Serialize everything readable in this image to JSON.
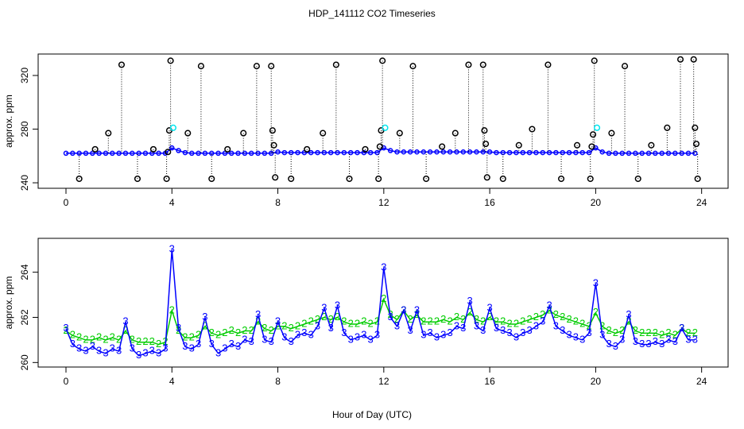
{
  "chart_data": [
    {
      "type": "scatter",
      "title": "HDP_141112  CO2 Timeseries",
      "ylabel": "approx. ppm",
      "xlim": [
        -1.05,
        25.0
      ],
      "ylim": [
        235.9,
        336
      ],
      "xticks": [
        0,
        4,
        8,
        12,
        16,
        20,
        24
      ],
      "yticks": [
        240,
        280,
        320
      ],
      "x": [
        0,
        0.25,
        0.5,
        0.75,
        1,
        1.25,
        1.5,
        1.75,
        2,
        2.25,
        2.5,
        2.75,
        3,
        3.25,
        3.5,
        3.75,
        4,
        4.25,
        4.5,
        4.75,
        5,
        5.25,
        5.5,
        5.75,
        6,
        6.25,
        6.5,
        6.75,
        7,
        7.25,
        7.5,
        7.75,
        8,
        8.25,
        8.5,
        8.75,
        9,
        9.25,
        9.5,
        9.75,
        10,
        10.25,
        10.5,
        10.75,
        11,
        11.25,
        11.5,
        11.75,
        12,
        12.25,
        12.5,
        12.75,
        13,
        13.25,
        13.5,
        13.75,
        14,
        14.25,
        14.5,
        14.75,
        15,
        15.25,
        15.5,
        15.75,
        16,
        16.25,
        16.5,
        16.75,
        17,
        17.25,
        17.5,
        17.75,
        18,
        18.25,
        18.5,
        18.75,
        19,
        19.25,
        19.5,
        19.75,
        20,
        20.25,
        20.5,
        20.75,
        21,
        21.25,
        21.5,
        21.75,
        22,
        22.25,
        22.5,
        22.75,
        23,
        23.25,
        23.5,
        23.75
      ],
      "series": [
        {
          "color": "#0000ff",
          "line": true,
          "values": [
            262,
            262,
            262,
            262,
            262,
            262,
            262,
            262,
            262,
            262,
            262,
            262,
            262,
            262,
            262,
            262,
            266,
            264,
            262.5,
            262,
            262,
            262,
            262,
            262,
            262,
            262,
            262,
            262,
            262,
            262,
            262,
            262,
            263,
            262.5,
            262.5,
            262.5,
            262.5,
            262.5,
            262.5,
            262.5,
            262.5,
            262.5,
            262.5,
            262.5,
            262.5,
            262.5,
            262.5,
            262.5,
            266,
            264,
            263,
            263,
            263,
            263,
            263,
            263,
            263,
            263,
            263,
            263,
            263,
            263,
            263,
            263,
            263,
            262.5,
            262.5,
            262.5,
            262.5,
            262.5,
            262.5,
            262.5,
            262.5,
            262.5,
            262.5,
            262.5,
            262.5,
            262.5,
            262.5,
            262.5,
            266,
            263,
            262,
            262,
            262,
            262,
            262,
            262,
            262,
            262,
            262,
            262,
            262,
            262,
            262,
            262
          ]
        },
        {
          "color": "#000000",
          "stems": true,
          "x": [
            0.5,
            1.1,
            1.6,
            2.1,
            2.7,
            3.3,
            3.8,
            3.85,
            3.9,
            3.95,
            4.6,
            5.1,
            5.5,
            6.1,
            6.7,
            7.2,
            7.75,
            7.8,
            7.85,
            7.9,
            8.5,
            9.1,
            9.7,
            10.2,
            10.7,
            11.3,
            11.8,
            11.85,
            11.9,
            11.95,
            12.6,
            13.1,
            13.6,
            14.2,
            14.7,
            15.2,
            15.75,
            15.8,
            15.85,
            15.9,
            16.5,
            17.1,
            17.6,
            18.2,
            18.7,
            19.3,
            19.8,
            19.85,
            19.9,
            19.95,
            20.6,
            21.1,
            21.6,
            22.1,
            22.7,
            23.2,
            23.7,
            23.75,
            23.8,
            23.85
          ],
          "values": [
            243,
            265,
            277,
            328,
            243,
            265,
            243,
            263,
            279,
            331,
            277,
            327,
            243,
            265,
            277,
            327,
            327,
            279,
            268,
            244,
            243,
            265,
            277,
            328,
            243,
            265,
            243,
            267,
            279,
            331,
            277,
            327,
            243,
            267,
            277,
            328,
            328,
            279,
            269,
            244,
            243,
            268,
            280,
            328,
            243,
            268,
            243,
            267,
            276,
            331,
            277,
            327,
            243,
            268,
            281,
            332,
            332,
            281,
            269,
            243
          ]
        },
        {
          "color": "#00e5ee",
          "x": [
            4.05,
            12.05,
            20.05
          ],
          "values": [
            281,
            281,
            281
          ]
        }
      ]
    },
    {
      "type": "line",
      "ylabel": "approx. ppm",
      "xlabel": "Hour of Day (UTC)",
      "xlim": [
        -1.05,
        25.0
      ],
      "ylim": [
        259.8,
        265.5
      ],
      "xticks": [
        0,
        4,
        8,
        12,
        16,
        20,
        24
      ],
      "yticks": [
        260,
        262,
        264
      ],
      "x": [
        0,
        0.25,
        0.5,
        0.75,
        1,
        1.25,
        1.5,
        1.75,
        2,
        2.25,
        2.5,
        2.75,
        3,
        3.25,
        3.5,
        3.75,
        4,
        4.25,
        4.5,
        4.75,
        5,
        5.25,
        5.5,
        5.75,
        6,
        6.25,
        6.5,
        6.75,
        7,
        7.25,
        7.5,
        7.75,
        8,
        8.25,
        8.5,
        8.75,
        9,
        9.25,
        9.5,
        9.75,
        10,
        10.25,
        10.5,
        10.75,
        11,
        11.25,
        11.5,
        11.75,
        12,
        12.25,
        12.5,
        12.75,
        13,
        13.25,
        13.5,
        13.75,
        14,
        14.25,
        14.5,
        14.75,
        15,
        15.25,
        15.5,
        15.75,
        16,
        16.25,
        16.5,
        16.75,
        17,
        17.25,
        17.5,
        17.75,
        18,
        18.25,
        18.5,
        18.75,
        19,
        19.25,
        19.5,
        19.75,
        20,
        20.25,
        20.5,
        20.75,
        21,
        21.25,
        21.5,
        21.75,
        22,
        22.25,
        22.5,
        22.75,
        23,
        23.25,
        23.5,
        23.75
      ],
      "series": [
        {
          "color": "#00cc00",
          "marker": "2",
          "values": [
            261.4,
            261.2,
            261.1,
            261.0,
            261.0,
            261.1,
            261.0,
            261.1,
            261.0,
            261.4,
            261.0,
            260.9,
            260.9,
            260.9,
            260.8,
            260.9,
            262.3,
            261.4,
            261.1,
            261.1,
            261.2,
            261.6,
            261.3,
            261.2,
            261.3,
            261.4,
            261.3,
            261.4,
            261.4,
            261.8,
            261.5,
            261.4,
            261.6,
            261.6,
            261.5,
            261.6,
            261.7,
            261.8,
            261.9,
            262.0,
            261.9,
            262.0,
            261.8,
            261.7,
            261.7,
            261.8,
            261.7,
            261.8,
            262.8,
            262.1,
            261.9,
            262.3,
            261.9,
            262.1,
            261.8,
            261.8,
            261.8,
            261.9,
            261.8,
            262.0,
            261.9,
            262.2,
            261.9,
            261.8,
            262.0,
            261.8,
            261.8,
            261.7,
            261.7,
            261.8,
            261.9,
            262.0,
            262.1,
            262.3,
            262.1,
            262.0,
            261.9,
            261.8,
            261.7,
            261.6,
            262.2,
            261.6,
            261.4,
            261.3,
            261.4,
            261.8,
            261.4,
            261.3,
            261.3,
            261.3,
            261.2,
            261.3,
            261.2,
            261.5,
            261.3,
            261.3
          ]
        },
        {
          "color": "#0000ff",
          "marker": "3",
          "values": [
            261.5,
            260.8,
            260.6,
            260.5,
            260.7,
            260.5,
            260.4,
            260.6,
            260.5,
            261.8,
            260.6,
            260.3,
            260.4,
            260.5,
            260.4,
            260.6,
            265.0,
            261.5,
            260.7,
            260.6,
            260.8,
            262.0,
            260.8,
            260.4,
            260.6,
            260.8,
            260.7,
            261.0,
            260.9,
            262.1,
            261.0,
            260.9,
            261.8,
            261.1,
            260.9,
            261.2,
            261.3,
            261.2,
            261.6,
            262.4,
            261.5,
            262.5,
            261.3,
            261.0,
            261.1,
            261.2,
            261.0,
            261.2,
            264.2,
            262.0,
            261.6,
            262.3,
            261.4,
            262.3,
            261.2,
            261.3,
            261.1,
            261.2,
            261.3,
            261.6,
            261.5,
            262.7,
            261.6,
            261.4,
            262.4,
            261.5,
            261.4,
            261.3,
            261.1,
            261.3,
            261.4,
            261.6,
            261.8,
            262.5,
            261.6,
            261.4,
            261.2,
            261.1,
            261.0,
            261.3,
            263.5,
            261.2,
            260.8,
            260.7,
            261.0,
            262.1,
            260.9,
            260.8,
            260.8,
            260.9,
            260.8,
            261.0,
            260.9,
            261.5,
            261.0,
            261.0
          ]
        }
      ]
    }
  ]
}
